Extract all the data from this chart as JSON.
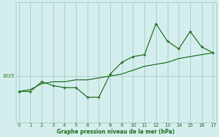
{
  "x": [
    0,
    1,
    2,
    3,
    4,
    5,
    6,
    7,
    8,
    9,
    10,
    11,
    12,
    13,
    14,
    15,
    16,
    17
  ],
  "y_actual": [
    1021.0,
    1021.0,
    1023.5,
    1022.5,
    1022.0,
    1022.0,
    1019.5,
    1019.5,
    1025.5,
    1028.5,
    1030.0,
    1030.5,
    1038.5,
    1034.0,
    1032.0,
    1036.5,
    1032.5,
    1031.0
  ],
  "y_trend": [
    1021.0,
    1021.5,
    1023.0,
    1023.5,
    1023.5,
    1024.0,
    1024.0,
    1024.5,
    1025.0,
    1025.5,
    1026.5,
    1027.5,
    1028.0,
    1028.5,
    1029.5,
    1030.0,
    1030.5,
    1031.0
  ],
  "line_color": "#1a6b1a",
  "bg_color": "#d4eeed",
  "grid_color": "#a8cece",
  "xlabel": "Graphe pression niveau de la mer (hPa)",
  "ytick_val": 1025,
  "ylim": [
    1013,
    1044
  ],
  "xlim": [
    -0.3,
    17.3
  ]
}
